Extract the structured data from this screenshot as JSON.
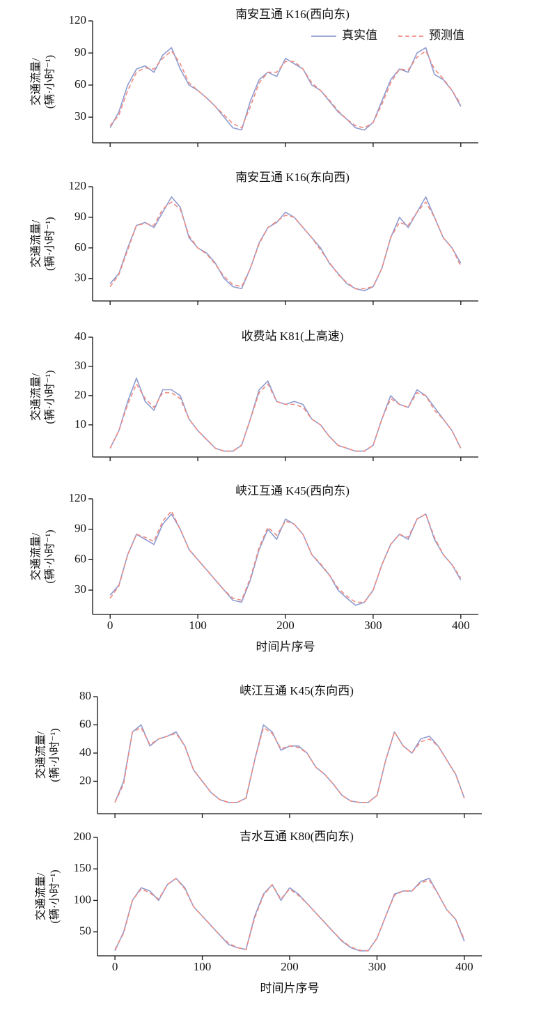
{
  "chart_data": [
    {
      "type": "line",
      "title": "南安互通 K16(西向东)",
      "ylabel": [
        "交通流量/",
        "(辆·小时⁻¹)"
      ],
      "xlim": [
        -20,
        420
      ],
      "xticks": [
        0,
        100,
        200,
        300,
        400
      ],
      "xtick_labels": false,
      "ylim": [
        6,
        120
      ],
      "yticks": [
        30,
        60,
        90,
        120
      ],
      "legend": "upper right",
      "x": [
        0,
        10,
        20,
        30,
        40,
        50,
        60,
        70,
        80,
        90,
        100,
        110,
        120,
        130,
        140,
        150,
        160,
        170,
        180,
        190,
        200,
        210,
        220,
        230,
        240,
        250,
        260,
        270,
        280,
        290,
        300,
        310,
        320,
        330,
        340,
        350,
        360,
        370,
        380,
        390,
        400
      ],
      "series": [
        {
          "name": "真实值",
          "color": "#8f9bd0",
          "style": "solid",
          "values": [
            20,
            35,
            60,
            75,
            78,
            72,
            88,
            95,
            75,
            60,
            55,
            48,
            40,
            30,
            20,
            18,
            45,
            65,
            72,
            68,
            85,
            80,
            75,
            60,
            55,
            45,
            35,
            28,
            20,
            18,
            25,
            45,
            65,
            75,
            72,
            90,
            95,
            70,
            65,
            55,
            40
          ]
        },
        {
          "name": "预测值",
          "color": "#f08a80",
          "style": "dashed",
          "values": [
            22,
            32,
            55,
            72,
            76,
            75,
            85,
            92,
            80,
            62,
            55,
            48,
            40,
            32,
            24,
            20,
            40,
            62,
            72,
            72,
            82,
            82,
            75,
            62,
            55,
            46,
            36,
            28,
            22,
            20,
            25,
            42,
            62,
            75,
            74,
            86,
            92,
            75,
            66,
            55,
            42
          ]
        }
      ]
    },
    {
      "type": "line",
      "title": "南安互通 K16(东向西)",
      "ylabel": [
        "交通流量/",
        "(辆·小时⁻¹)"
      ],
      "xlim": [
        -20,
        420
      ],
      "xticks": [
        0,
        100,
        200,
        300,
        400
      ],
      "xtick_labels": false,
      "ylim": [
        8,
        120
      ],
      "yticks": [
        30,
        60,
        90,
        120
      ],
      "x": [
        0,
        10,
        20,
        30,
        40,
        50,
        60,
        70,
        80,
        90,
        100,
        110,
        120,
        130,
        140,
        150,
        160,
        170,
        180,
        190,
        200,
        210,
        220,
        230,
        240,
        250,
        260,
        270,
        280,
        290,
        300,
        310,
        320,
        330,
        340,
        350,
        360,
        370,
        380,
        390,
        400
      ],
      "series": [
        {
          "color": "#8f9bd0",
          "style": "solid",
          "values": [
            25,
            35,
            60,
            82,
            85,
            80,
            95,
            110,
            100,
            70,
            60,
            55,
            45,
            30,
            22,
            20,
            40,
            65,
            80,
            85,
            95,
            90,
            80,
            70,
            60,
            45,
            35,
            25,
            20,
            18,
            22,
            40,
            70,
            90,
            80,
            95,
            110,
            90,
            70,
            60,
            45
          ]
        },
        {
          "color": "#f08a80",
          "style": "dashed",
          "values": [
            22,
            34,
            58,
            82,
            84,
            82,
            98,
            105,
            98,
            72,
            60,
            54,
            44,
            32,
            24,
            22,
            40,
            64,
            80,
            86,
            92,
            90,
            80,
            70,
            58,
            46,
            34,
            26,
            20,
            20,
            22,
            40,
            70,
            85,
            82,
            95,
            105,
            90,
            70,
            60,
            42
          ]
        }
      ]
    },
    {
      "type": "line",
      "title": "收费站 K81(上高速)",
      "ylabel": [
        "交通流量/",
        "(辆·小时⁻¹)"
      ],
      "xlim": [
        -20,
        420
      ],
      "xticks": [
        0,
        100,
        200,
        300,
        400
      ],
      "xtick_labels": false,
      "ylim": [
        -1,
        40
      ],
      "yticks": [
        10,
        20,
        30,
        40
      ],
      "x": [
        0,
        10,
        20,
        30,
        40,
        50,
        60,
        70,
        80,
        90,
        100,
        110,
        120,
        130,
        140,
        150,
        160,
        170,
        180,
        190,
        200,
        210,
        220,
        230,
        240,
        250,
        260,
        270,
        280,
        290,
        300,
        310,
        320,
        330,
        340,
        350,
        360,
        370,
        380,
        390,
        400
      ],
      "series": [
        {
          "color": "#8f9bd0",
          "style": "solid",
          "values": [
            2,
            8,
            18,
            26,
            18,
            15,
            22,
            22,
            20,
            12,
            8,
            5,
            2,
            1,
            1,
            3,
            12,
            22,
            25,
            18,
            17,
            18,
            17,
            12,
            10,
            6,
            3,
            2,
            1,
            1,
            3,
            12,
            20,
            17,
            16,
            22,
            20,
            16,
            12,
            8,
            2
          ]
        },
        {
          "color": "#f08a80",
          "style": "dashed",
          "values": [
            2,
            8,
            17,
            24,
            19,
            16,
            21,
            21,
            19,
            12,
            8,
            5,
            2,
            1,
            1,
            3,
            12,
            21,
            24,
            18,
            17,
            17,
            16,
            12,
            10,
            6,
            3,
            2,
            1,
            1,
            3,
            12,
            19,
            17,
            16,
            21,
            20,
            15,
            12,
            8,
            2
          ]
        }
      ]
    },
    {
      "type": "line",
      "title": "峡江互通 K45(西向东)",
      "ylabel": [
        "交通流量/",
        "(辆·小时⁻¹)"
      ],
      "xlabel": "时间片序号",
      "xlim": [
        -20,
        420
      ],
      "xticks": [
        0,
        100,
        200,
        300,
        400
      ],
      "xtick_labels": true,
      "ylim": [
        6,
        120
      ],
      "yticks": [
        30,
        60,
        90,
        120
      ],
      "x": [
        0,
        10,
        20,
        30,
        40,
        50,
        60,
        70,
        80,
        90,
        100,
        110,
        120,
        130,
        140,
        150,
        160,
        170,
        180,
        190,
        200,
        210,
        220,
        230,
        240,
        250,
        260,
        270,
        280,
        290,
        300,
        310,
        320,
        330,
        340,
        350,
        360,
        370,
        380,
        390,
        400
      ],
      "series": [
        {
          "color": "#8f9bd0",
          "style": "solid",
          "values": [
            25,
            35,
            65,
            85,
            80,
            75,
            95,
            105,
            90,
            70,
            60,
            50,
            40,
            30,
            20,
            18,
            40,
            70,
            90,
            80,
            100,
            95,
            85,
            65,
            55,
            45,
            30,
            22,
            15,
            18,
            30,
            55,
            75,
            85,
            80,
            100,
            105,
            80,
            65,
            55,
            40
          ]
        },
        {
          "color": "#f08a80",
          "style": "dashed",
          "values": [
            22,
            34,
            65,
            85,
            82,
            78,
            98,
            108,
            90,
            70,
            60,
            50,
            40,
            30,
            22,
            20,
            42,
            72,
            92,
            84,
            98,
            95,
            85,
            65,
            56,
            45,
            32,
            24,
            18,
            18,
            30,
            55,
            75,
            85,
            82,
            100,
            105,
            82,
            65,
            55,
            42
          ]
        }
      ]
    },
    {
      "type": "line",
      "title": "峡江互通 K45(东向西)",
      "ylabel": [
        "交通流量/",
        "(辆·小时⁻¹)"
      ],
      "xlim": [
        -20,
        420
      ],
      "xticks": [
        0,
        100,
        200,
        300,
        400
      ],
      "xtick_labels": false,
      "ylim": [
        -3,
        80
      ],
      "yticks": [
        20,
        40,
        60,
        80
      ],
      "x": [
        0,
        10,
        20,
        30,
        40,
        50,
        60,
        70,
        80,
        90,
        100,
        110,
        120,
        130,
        140,
        150,
        160,
        170,
        180,
        190,
        200,
        210,
        220,
        230,
        240,
        250,
        260,
        270,
        280,
        290,
        300,
        310,
        320,
        330,
        340,
        350,
        360,
        370,
        380,
        390,
        400
      ],
      "series": [
        {
          "color": "#8f9bd0",
          "style": "solid",
          "values": [
            5,
            20,
            55,
            60,
            45,
            50,
            52,
            55,
            45,
            28,
            20,
            12,
            7,
            5,
            5,
            8,
            35,
            60,
            55,
            42,
            45,
            45,
            40,
            30,
            25,
            18,
            10,
            6,
            5,
            5,
            10,
            35,
            55,
            45,
            40,
            50,
            52,
            45,
            35,
            25,
            8
          ]
        },
        {
          "color": "#f08a80",
          "style": "dashed",
          "values": [
            5,
            18,
            55,
            58,
            46,
            50,
            52,
            54,
            45,
            28,
            20,
            12,
            7,
            5,
            5,
            8,
            35,
            58,
            54,
            43,
            45,
            44,
            40,
            30,
            25,
            18,
            10,
            6,
            5,
            5,
            10,
            35,
            55,
            45,
            40,
            48,
            50,
            45,
            35,
            25,
            8
          ]
        }
      ]
    },
    {
      "type": "line",
      "title": "吉水互通 K80(西向东)",
      "ylabel": [
        "交通流量/",
        "(辆·小时⁻¹)"
      ],
      "xlabel": "时间片序号",
      "xlim": [
        -20,
        420
      ],
      "xticks": [
        0,
        100,
        200,
        300,
        400
      ],
      "xtick_labels": true,
      "ylim": [
        12,
        200
      ],
      "yticks": [
        50,
        100,
        150,
        200
      ],
      "x": [
        0,
        10,
        20,
        30,
        40,
        50,
        60,
        70,
        80,
        90,
        100,
        110,
        120,
        130,
        140,
        150,
        160,
        170,
        180,
        190,
        200,
        210,
        220,
        230,
        240,
        250,
        260,
        270,
        280,
        290,
        300,
        310,
        320,
        330,
        340,
        350,
        360,
        370,
        380,
        390,
        400
      ],
      "series": [
        {
          "color": "#8f9bd0",
          "style": "solid",
          "values": [
            20,
            50,
            100,
            120,
            115,
            100,
            125,
            135,
            120,
            90,
            75,
            60,
            45,
            30,
            25,
            22,
            75,
            110,
            125,
            100,
            120,
            110,
            95,
            80,
            65,
            50,
            35,
            25,
            20,
            20,
            40,
            75,
            110,
            115,
            115,
            130,
            135,
            110,
            85,
            70,
            35
          ]
        },
        {
          "color": "#f08a80",
          "style": "dashed",
          "values": [
            22,
            48,
            100,
            118,
            112,
            102,
            125,
            135,
            118,
            90,
            75,
            60,
            45,
            32,
            25,
            22,
            72,
            108,
            125,
            102,
            118,
            108,
            95,
            80,
            65,
            50,
            36,
            26,
            21,
            20,
            40,
            75,
            108,
            115,
            115,
            128,
            132,
            110,
            85,
            70,
            38
          ]
        }
      ]
    }
  ]
}
